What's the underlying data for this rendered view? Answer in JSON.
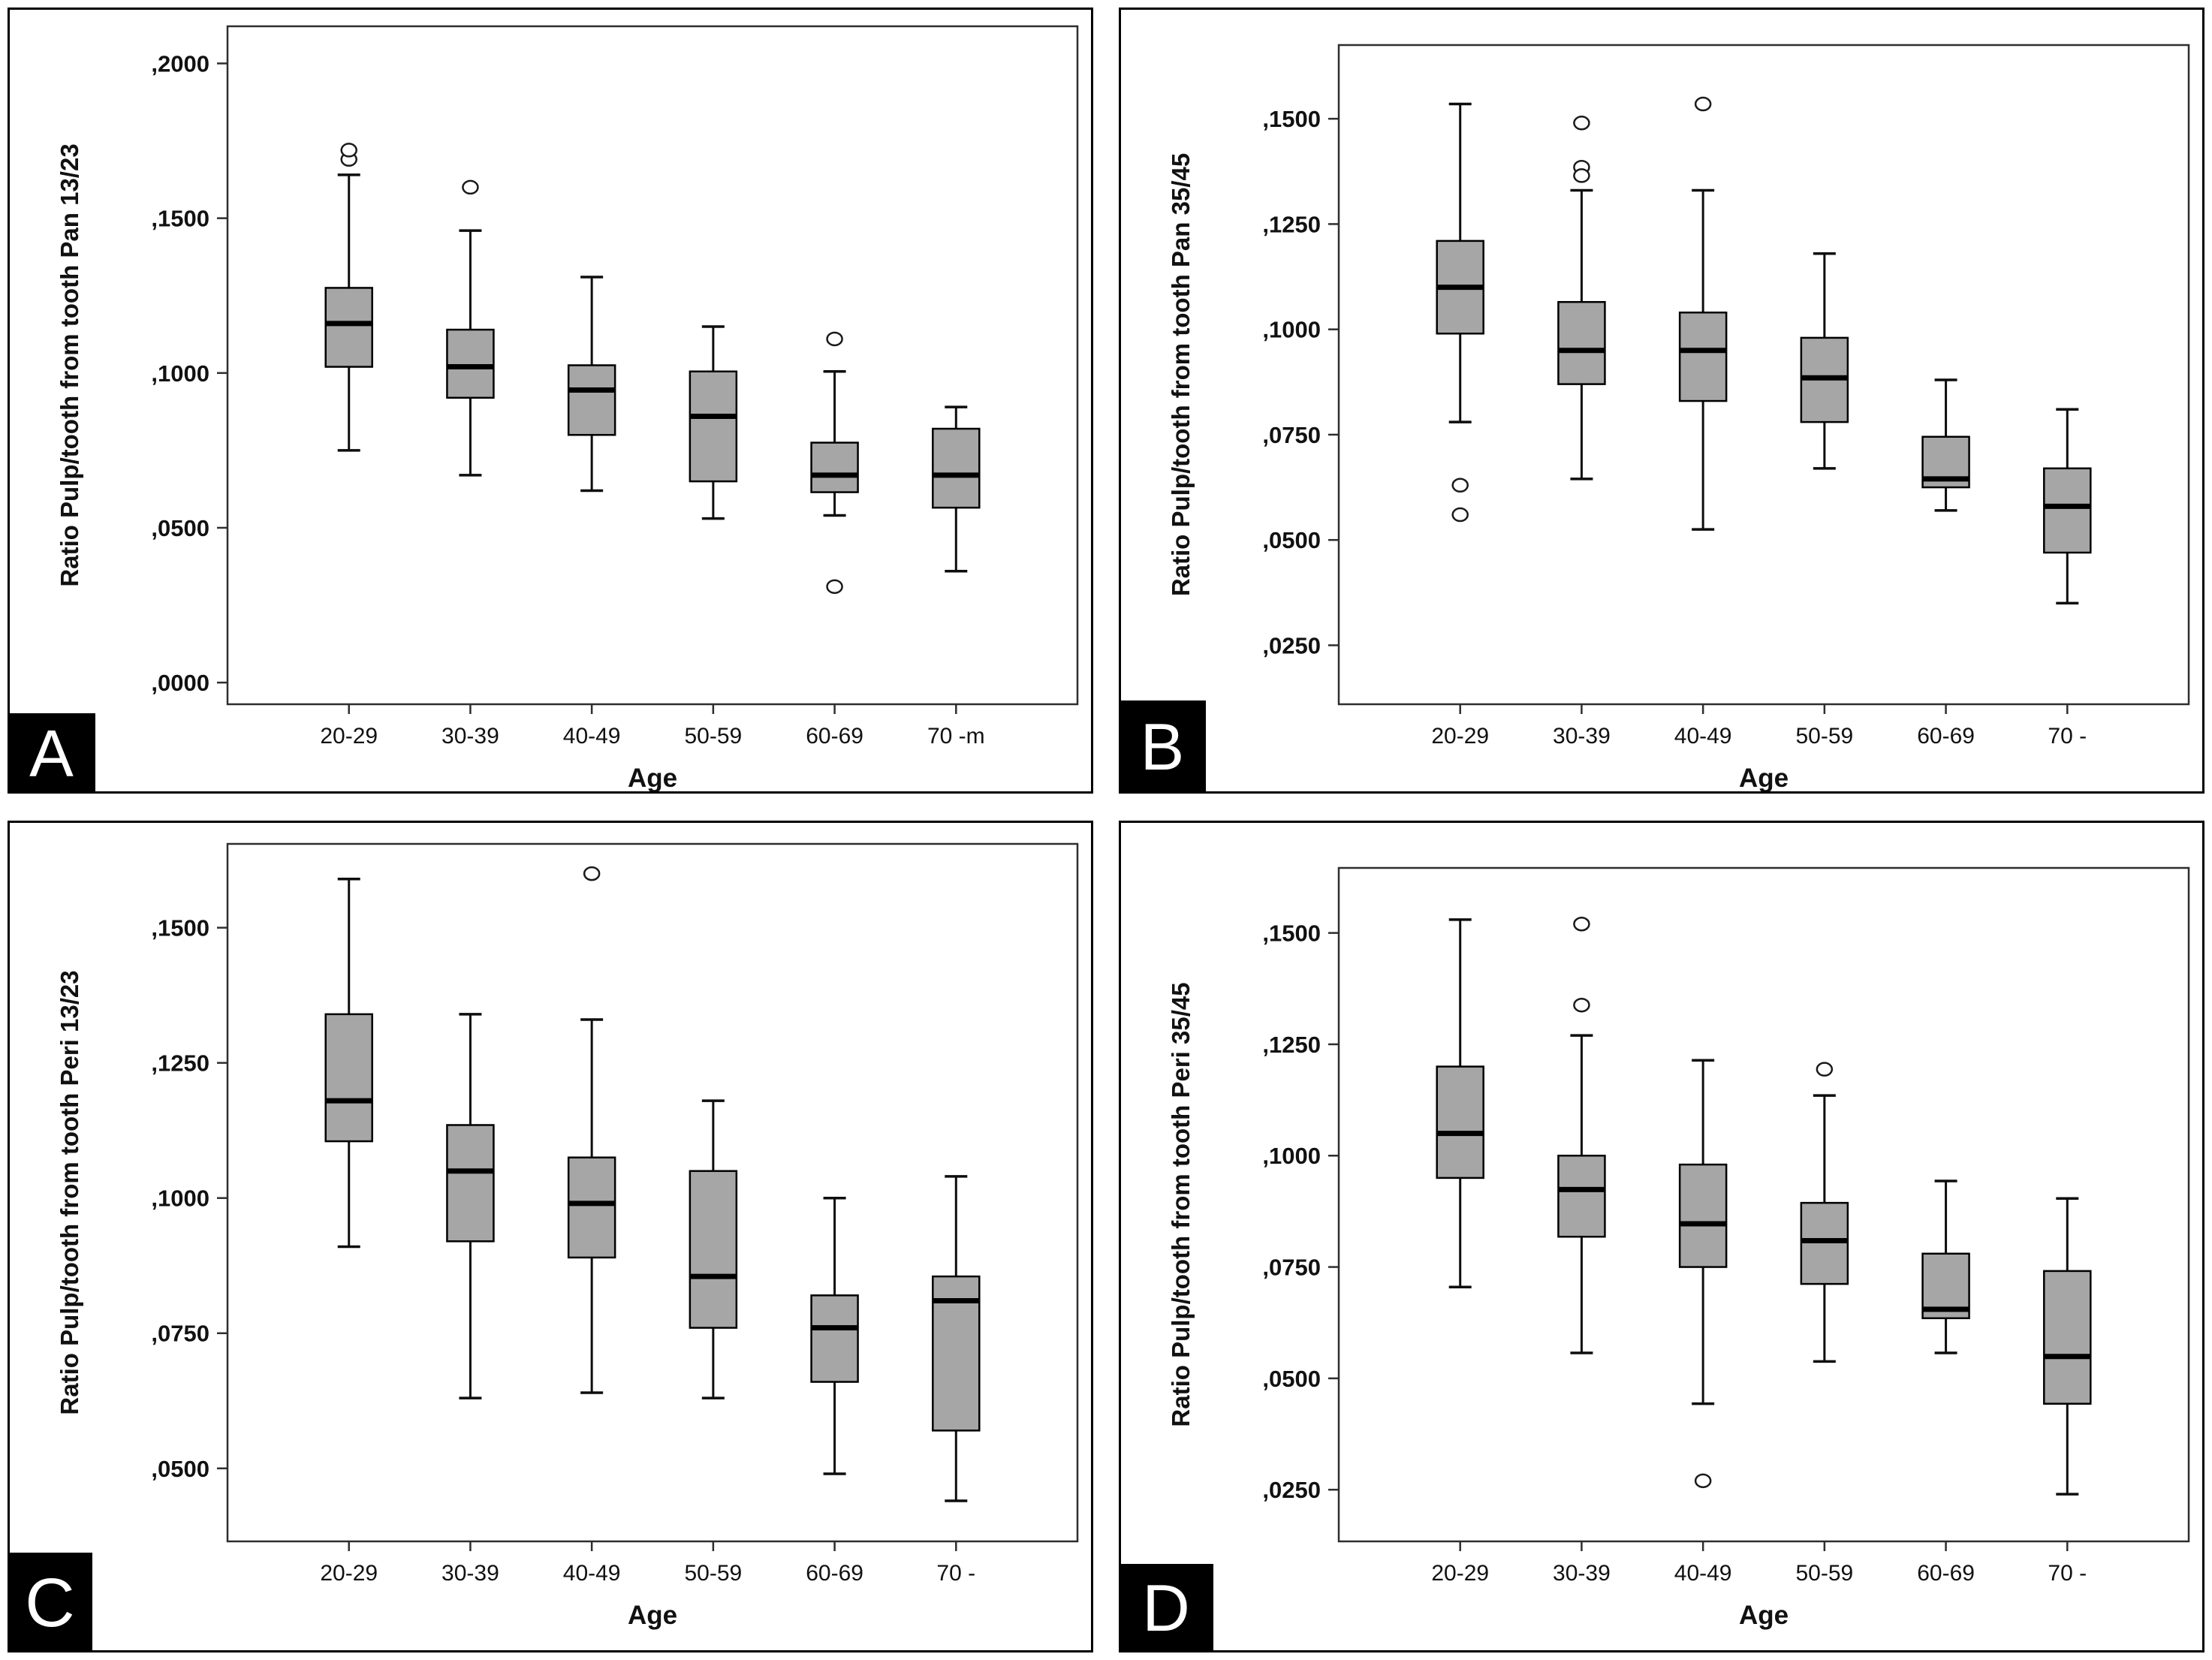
{
  "figure": {
    "type": "four-panel-boxplot-figure",
    "colors": {
      "background": "#ffffff",
      "panel_border": "#000000",
      "frame": "#2e2e2e",
      "box_fill": "#a6a6a6",
      "box_stroke": "#000000",
      "median": "#000000",
      "whisker": "#0d0d0d",
      "outlier_stroke": "#1a1a1a",
      "text": "#111111",
      "badge_bg": "#000000",
      "badge_text": "#ffffff"
    }
  },
  "chart_data": [
    {
      "panel_label": "A",
      "type": "boxplot",
      "ylabel": "Ratio Pulp/tooth from tooth Pan 13/23",
      "xlabel": "Age",
      "categories": [
        "20-29",
        "30-39",
        "40-49",
        "50-59",
        "60-69",
        "70 -m"
      ],
      "ytick_values": [
        0.0,
        0.05,
        0.1,
        0.15,
        0.2
      ],
      "ytick_labels": [
        ",0000",
        ",0500",
        ",1000",
        ",1500",
        ",2000"
      ],
      "ylim": [
        -0.007,
        0.212
      ],
      "grid": false,
      "legend": "none",
      "boxes": [
        {
          "whisker_low": 0.075,
          "q1": 0.102,
          "median": 0.116,
          "q3": 0.1275,
          "whisker_high": 0.164,
          "outliers": [
            0.169,
            0.172
          ]
        },
        {
          "whisker_low": 0.067,
          "q1": 0.092,
          "median": 0.102,
          "q3": 0.114,
          "whisker_high": 0.146,
          "outliers": [
            0.16
          ]
        },
        {
          "whisker_low": 0.062,
          "q1": 0.08,
          "median": 0.0945,
          "q3": 0.1025,
          "whisker_high": 0.131,
          "outliers": []
        },
        {
          "whisker_low": 0.053,
          "q1": 0.065,
          "median": 0.086,
          "q3": 0.1005,
          "whisker_high": 0.115,
          "outliers": []
        },
        {
          "whisker_low": 0.054,
          "q1": 0.0615,
          "median": 0.067,
          "q3": 0.0775,
          "whisker_high": 0.1005,
          "outliers": [
            0.111,
            0.031
          ]
        },
        {
          "whisker_low": 0.036,
          "q1": 0.0565,
          "median": 0.067,
          "q3": 0.082,
          "whisker_high": 0.089,
          "outliers": []
        }
      ]
    },
    {
      "panel_label": "B",
      "type": "boxplot",
      "ylabel": "Ratio Pulp/tooth from tooth Pan 35/45",
      "xlabel": "Age",
      "categories": [
        "20-29",
        "30-39",
        "40-49",
        "50-59",
        "60-69",
        "70 -"
      ],
      "ytick_values": [
        0.025,
        0.05,
        0.075,
        0.1,
        0.125,
        0.15
      ],
      "ytick_labels": [
        ",0250",
        ",0500",
        ",0750",
        ",1000",
        ",1250",
        ",1500"
      ],
      "ylim": [
        0.011,
        0.1675
      ],
      "grid": false,
      "legend": "none",
      "boxes": [
        {
          "whisker_low": 0.078,
          "q1": 0.099,
          "median": 0.11,
          "q3": 0.121,
          "whisker_high": 0.1535,
          "outliers": [
            0.063,
            0.056
          ]
        },
        {
          "whisker_low": 0.0645,
          "q1": 0.087,
          "median": 0.095,
          "q3": 0.1065,
          "whisker_high": 0.133,
          "outliers": [
            0.149,
            0.1385,
            0.1365
          ]
        },
        {
          "whisker_low": 0.0525,
          "q1": 0.083,
          "median": 0.095,
          "q3": 0.104,
          "whisker_high": 0.133,
          "outliers": [
            0.1535
          ]
        },
        {
          "whisker_low": 0.067,
          "q1": 0.078,
          "median": 0.0885,
          "q3": 0.098,
          "whisker_high": 0.118,
          "outliers": []
        },
        {
          "whisker_low": 0.057,
          "q1": 0.0625,
          "median": 0.0645,
          "q3": 0.0745,
          "whisker_high": 0.088,
          "outliers": []
        },
        {
          "whisker_low": 0.035,
          "q1": 0.047,
          "median": 0.058,
          "q3": 0.067,
          "whisker_high": 0.081,
          "outliers": []
        }
      ]
    },
    {
      "panel_label": "C",
      "type": "boxplot",
      "ylabel": "Ratio Pulp/tooth from tooth Peri 13/23",
      "xlabel": "Age",
      "categories": [
        "20-29",
        "30-39",
        "40-49",
        "50-59",
        "60-69",
        "70 -"
      ],
      "ytick_values": [
        0.05,
        0.075,
        0.1,
        0.125,
        0.15
      ],
      "ytick_labels": [
        ",0500",
        ",0750",
        ",1000",
        ",1250",
        ",1500"
      ],
      "ylim": [
        0.0365,
        0.1655
      ],
      "grid": false,
      "legend": "none",
      "boxes": [
        {
          "whisker_low": 0.091,
          "q1": 0.1105,
          "median": 0.118,
          "q3": 0.134,
          "whisker_high": 0.159,
          "outliers": []
        },
        {
          "whisker_low": 0.063,
          "q1": 0.092,
          "median": 0.105,
          "q3": 0.1135,
          "whisker_high": 0.134,
          "outliers": []
        },
        {
          "whisker_low": 0.064,
          "q1": 0.089,
          "median": 0.099,
          "q3": 0.1075,
          "whisker_high": 0.133,
          "outliers": [
            0.16
          ]
        },
        {
          "whisker_low": 0.063,
          "q1": 0.076,
          "median": 0.0855,
          "q3": 0.105,
          "whisker_high": 0.118,
          "outliers": []
        },
        {
          "whisker_low": 0.049,
          "q1": 0.066,
          "median": 0.076,
          "q3": 0.082,
          "whisker_high": 0.1,
          "outliers": []
        },
        {
          "whisker_low": 0.044,
          "q1": 0.057,
          "median": 0.081,
          "q3": 0.0855,
          "whisker_high": 0.104,
          "outliers": []
        }
      ]
    },
    {
      "panel_label": "D",
      "type": "boxplot",
      "ylabel": "Ratio Pulp/tooth from tooth Peri 35/45",
      "xlabel": "Age",
      "categories": [
        "20-29",
        "30-39",
        "40-49",
        "50-59",
        "60-69",
        "70 -"
      ],
      "ytick_values": [
        0.025,
        0.05,
        0.075,
        0.1,
        0.125,
        0.15
      ],
      "ytick_labels": [
        ",0250",
        ",0500",
        ",0750",
        ",1000",
        ",1250",
        ",1500"
      ],
      "ylim": [
        0.0134,
        0.1646
      ],
      "grid": false,
      "legend": "none",
      "boxes": [
        {
          "whisker_low": 0.0705,
          "q1": 0.095,
          "median": 0.105,
          "q3": 0.12,
          "whisker_high": 0.153,
          "outliers": []
        },
        {
          "whisker_low": 0.0557,
          "q1": 0.0818,
          "median": 0.0924,
          "q3": 0.1,
          "whisker_high": 0.127,
          "outliers": [
            0.152,
            0.1338
          ]
        },
        {
          "whisker_low": 0.0443,
          "q1": 0.075,
          "median": 0.0847,
          "q3": 0.098,
          "whisker_high": 0.1214,
          "outliers": [
            0.027
          ]
        },
        {
          "whisker_low": 0.0538,
          "q1": 0.0712,
          "median": 0.0809,
          "q3": 0.0894,
          "whisker_high": 0.1135,
          "outliers": [
            0.1194
          ]
        },
        {
          "whisker_low": 0.0557,
          "q1": 0.0635,
          "median": 0.0655,
          "q3": 0.078,
          "whisker_high": 0.0943,
          "outliers": []
        },
        {
          "whisker_low": 0.024,
          "q1": 0.0443,
          "median": 0.0549,
          "q3": 0.0741,
          "whisker_high": 0.0904,
          "outliers": []
        }
      ]
    }
  ]
}
